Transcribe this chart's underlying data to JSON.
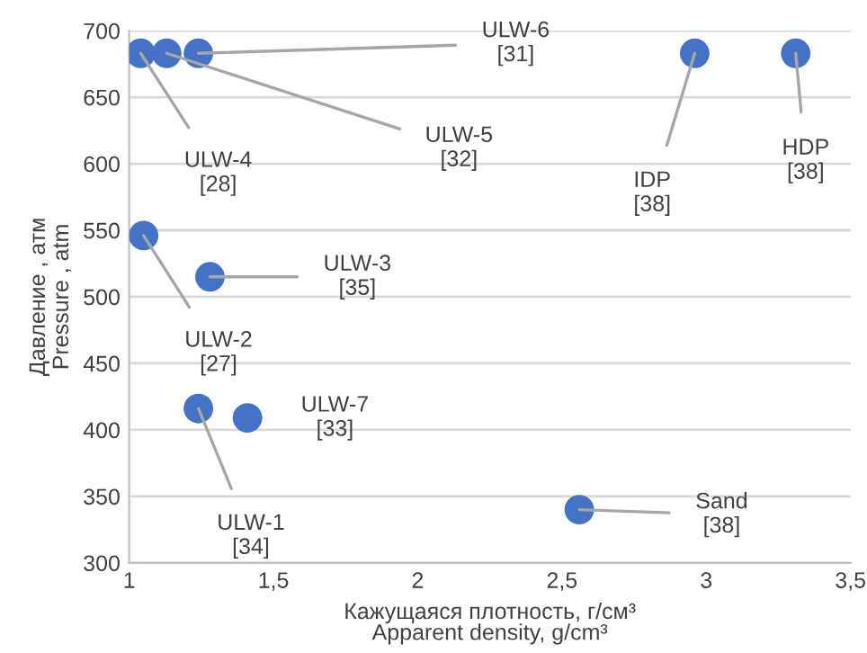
{
  "chart_data": {
    "type": "scatter",
    "xlabel": "Кажущаяся плотность, г/см³\nApparent density, g/cm³",
    "ylabel": "Давление , атм\nPressure , atm",
    "series": [
      {
        "color": "#4472c4",
        "x": [
          1.04,
          1.13,
          1.24,
          2.96,
          3.31,
          1.05,
          1.28,
          1.24,
          1.41,
          2.56
        ],
        "values": [
          683,
          683,
          683,
          683,
          683,
          546,
          515,
          416,
          409,
          340
        ]
      }
    ],
    "annotations": [
      {
        "text": "ULW-4\n[28]",
        "x": 1.04,
        "y": 683
      },
      {
        "text": "ULW-5\n[32]",
        "x": 1.13,
        "y": 683
      },
      {
        "text": "ULW-6\n[31]",
        "x": 1.24,
        "y": 683
      },
      {
        "text": "IDP\n[38]",
        "x": 2.96,
        "y": 683
      },
      {
        "text": "HDP\n[38]",
        "x": 3.31,
        "y": 683
      },
      {
        "text": "ULW-2\n[27]",
        "x": 1.05,
        "y": 546
      },
      {
        "text": "ULW-3\n[35]",
        "x": 1.28,
        "y": 515
      },
      {
        "text": "ULW-1\n[34]",
        "x": 1.24,
        "y": 416
      },
      {
        "text": "ULW-7\n[33]",
        "x": 1.41,
        "y": 409
      },
      {
        "text": "Sand\n[38]",
        "x": 2.56,
        "y": 340
      }
    ],
    "xlim": [
      1,
      3.5
    ],
    "xticks": [
      1,
      {
        "value": 1.5,
        "label": "1,5"
      },
      2,
      {
        "value": 2.5,
        "label": "2,5"
      },
      3,
      {
        "value": 3.5,
        "label": "3,5"
      }
    ],
    "ylim": [
      300,
      700
    ],
    "yticks": [
      300,
      350,
      400,
      450,
      500,
      550,
      600,
      650,
      700
    ],
    "grid": "y",
    "marker": "circle",
    "legend": false
  }
}
